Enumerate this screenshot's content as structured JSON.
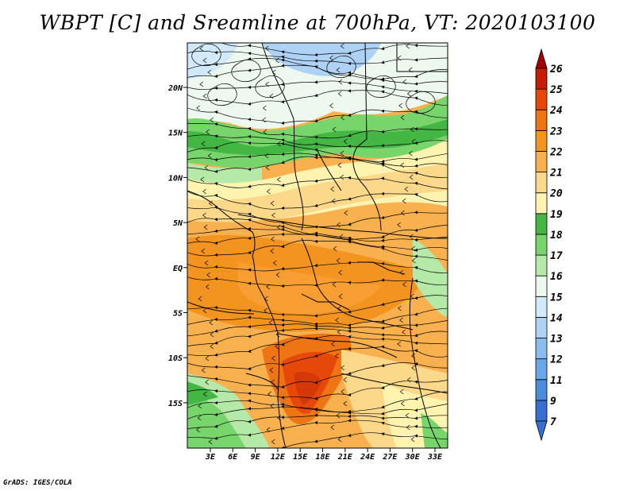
{
  "title": "WBPT [C] and Sreamline at 700hPa, VT: 2020103100",
  "credit": "GrADS: IGES/COLA",
  "map": {
    "lat_labels": [
      "20N",
      "15N",
      "10N",
      "5N",
      "EQ",
      "5S",
      "10S",
      "15S"
    ],
    "lon_labels": [
      "3E",
      "6E",
      "9E",
      "12E",
      "15E",
      "18E",
      "21E",
      "24E",
      "27E",
      "30E",
      "33E"
    ],
    "layers": [
      "wet-bulb potential temperature shading",
      "700hPa streamlines",
      "country borders",
      "coastlines"
    ]
  },
  "colorbar": {
    "levels": [
      "7",
      "9",
      "11",
      "12",
      "13",
      "14",
      "15",
      "16",
      "17",
      "18",
      "19",
      "20",
      "21",
      "22",
      "23",
      "24",
      "25",
      "26"
    ],
    "colors": [
      "#3770d2",
      "#4a8cdf",
      "#6aa6ea",
      "#8bbcf0",
      "#aed2f5",
      "#d2e9fa",
      "#edf8ee",
      "#b4e9a7",
      "#77d56b",
      "#44b644",
      "#fff3b0",
      "#fcd98a",
      "#f9b04e",
      "#f39420",
      "#ee7414",
      "#e6480a",
      "#c81d05",
      "#a00000"
    ]
  }
}
